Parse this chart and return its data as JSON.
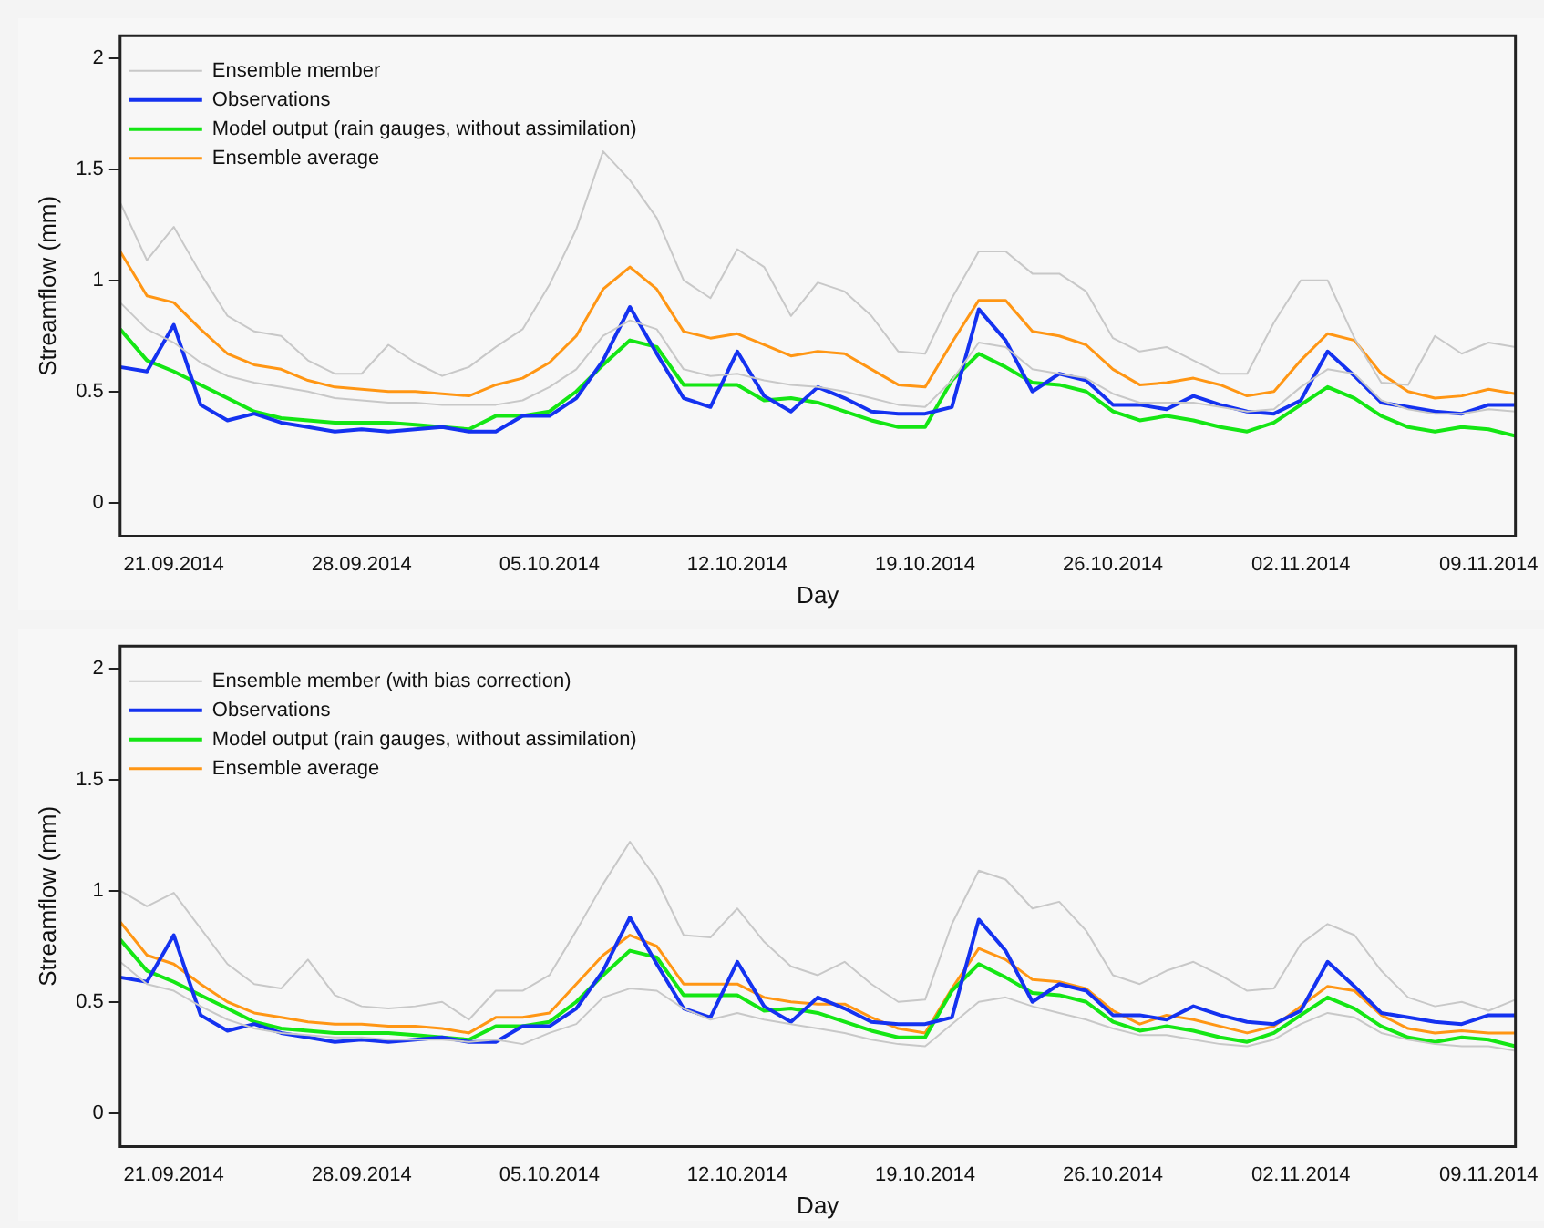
{
  "chart_data": [
    {
      "type": "line",
      "xlabel": "Day",
      "ylabel": "Streamflow (mm)",
      "legend": "top left",
      "grid": false,
      "marker": "none",
      "line_style": "solid",
      "x": [
        "2014-09-19",
        "2014-09-20",
        "2014-09-21",
        "2014-09-22",
        "2014-09-23",
        "2014-09-24",
        "2014-09-25",
        "2014-09-26",
        "2014-09-27",
        "2014-09-28",
        "2014-09-29",
        "2014-09-30",
        "2014-10-01",
        "2014-10-02",
        "2014-10-03",
        "2014-10-04",
        "2014-10-05",
        "2014-10-06",
        "2014-10-07",
        "2014-10-08",
        "2014-10-09",
        "2014-10-10",
        "2014-10-11",
        "2014-10-12",
        "2014-10-13",
        "2014-10-14",
        "2014-10-15",
        "2014-10-16",
        "2014-10-17",
        "2014-10-18",
        "2014-10-19",
        "2014-10-20",
        "2014-10-21",
        "2014-10-22",
        "2014-10-23",
        "2014-10-24",
        "2014-10-25",
        "2014-10-26",
        "2014-10-27",
        "2014-10-28",
        "2014-10-29",
        "2014-10-30",
        "2014-10-31",
        "2014-11-01",
        "2014-11-02",
        "2014-11-03",
        "2014-11-04",
        "2014-11-05",
        "2014-11-06",
        "2014-11-07",
        "2014-11-08",
        "2014-11-09",
        "2014-11-10"
      ],
      "xlim": [
        "2014-09-19",
        "2014-11-10"
      ],
      "xticks": [
        {
          "value": "2014-09-21",
          "label": "21.09.2014"
        },
        {
          "value": "2014-09-28",
          "label": "28.09.2014"
        },
        {
          "value": "2014-10-05",
          "label": "05.10.2014"
        },
        {
          "value": "2014-10-12",
          "label": "12.10.2014"
        },
        {
          "value": "2014-10-19",
          "label": "19.10.2014"
        },
        {
          "value": "2014-10-26",
          "label": "26.10.2014"
        },
        {
          "value": "2014-11-02",
          "label": "02.11.2014"
        },
        {
          "value": "2014-11-09",
          "label": "09.11.2014"
        }
      ],
      "ylim": [
        -0.15,
        2.1
      ],
      "yticks": [
        0,
        0.5,
        1,
        1.5,
        2
      ],
      "series": [
        {
          "name": "Ensemble member",
          "color": "#c8c8c8",
          "values": [
            1.35,
            1.09,
            1.24,
            1.03,
            0.84,
            0.77,
            0.75,
            0.64,
            0.58,
            0.58,
            0.71,
            0.63,
            0.57,
            0.61,
            0.7,
            0.78,
            0.98,
            1.23,
            1.58,
            1.45,
            1.28,
            1.0,
            0.92,
            1.14,
            1.06,
            0.84,
            0.99,
            0.95,
            0.84,
            0.68,
            0.67,
            0.92,
            1.13,
            1.13,
            1.03,
            1.03,
            0.95,
            0.74,
            0.68,
            0.7,
            0.64,
            0.58,
            0.58,
            0.81,
            1.0,
            1.0,
            0.74,
            0.54,
            0.53,
            0.75,
            0.67,
            0.72,
            0.7
          ]
        },
        {
          "color": "#c8c8c8",
          "values": [
            0.9,
            0.78,
            0.72,
            0.63,
            0.57,
            0.54,
            0.52,
            0.5,
            0.47,
            0.46,
            0.45,
            0.45,
            0.44,
            0.44,
            0.44,
            0.46,
            0.52,
            0.6,
            0.75,
            0.82,
            0.78,
            0.6,
            0.57,
            0.58,
            0.55,
            0.53,
            0.52,
            0.5,
            0.47,
            0.44,
            0.43,
            0.55,
            0.72,
            0.7,
            0.6,
            0.58,
            0.56,
            0.49,
            0.45,
            0.45,
            0.45,
            0.43,
            0.41,
            0.42,
            0.52,
            0.6,
            0.58,
            0.46,
            0.42,
            0.4,
            0.4,
            0.42,
            0.41
          ]
        },
        {
          "name": "Observations",
          "color": "#1432f0",
          "values": [
            0.61,
            0.59,
            0.8,
            0.44,
            0.37,
            0.4,
            0.36,
            0.34,
            0.32,
            0.33,
            0.32,
            0.33,
            0.34,
            0.32,
            0.32,
            0.39,
            0.39,
            0.47,
            0.64,
            0.88,
            0.67,
            0.47,
            0.43,
            0.68,
            0.48,
            0.41,
            0.52,
            0.47,
            0.41,
            0.4,
            0.4,
            0.43,
            0.87,
            0.73,
            0.5,
            0.58,
            0.55,
            0.44,
            0.44,
            0.42,
            0.48,
            0.44,
            0.41,
            0.4,
            0.46,
            0.68,
            0.57,
            0.45,
            0.43,
            0.41,
            0.4,
            0.44,
            0.44
          ]
        },
        {
          "name": "Model output (rain gauges, without assimilation)",
          "color": "#14e614",
          "values": [
            0.78,
            0.64,
            0.59,
            0.53,
            0.47,
            0.41,
            0.38,
            0.37,
            0.36,
            0.36,
            0.36,
            0.35,
            0.34,
            0.33,
            0.39,
            0.39,
            0.41,
            0.5,
            0.62,
            0.73,
            0.7,
            0.53,
            0.53,
            0.53,
            0.46,
            0.47,
            0.45,
            0.41,
            0.37,
            0.34,
            0.34,
            0.55,
            0.67,
            0.61,
            0.54,
            0.53,
            0.5,
            0.41,
            0.37,
            0.39,
            0.37,
            0.34,
            0.32,
            0.36,
            0.44,
            0.52,
            0.47,
            0.39,
            0.34,
            0.32,
            0.34,
            0.33,
            0.3
          ]
        },
        {
          "name": "Ensemble average",
          "color": "#ff9614",
          "values": [
            1.13,
            0.93,
            0.9,
            0.78,
            0.67,
            0.62,
            0.6,
            0.55,
            0.52,
            0.51,
            0.5,
            0.5,
            0.49,
            0.48,
            0.53,
            0.56,
            0.63,
            0.75,
            0.96,
            1.06,
            0.96,
            0.77,
            0.74,
            0.76,
            0.71,
            0.66,
            0.68,
            0.67,
            0.6,
            0.53,
            0.52,
            0.72,
            0.91,
            0.91,
            0.77,
            0.75,
            0.71,
            0.6,
            0.53,
            0.54,
            0.56,
            0.53,
            0.48,
            0.5,
            0.64,
            0.76,
            0.73,
            0.58,
            0.5,
            0.47,
            0.48,
            0.51,
            0.49
          ]
        }
      ]
    },
    {
      "type": "line",
      "xlabel": "Day",
      "ylabel": "Streamflow (mm)",
      "legend": "top left",
      "grid": false,
      "marker": "none",
      "line_style": "solid",
      "x": [
        "2014-09-19",
        "2014-09-20",
        "2014-09-21",
        "2014-09-22",
        "2014-09-23",
        "2014-09-24",
        "2014-09-25",
        "2014-09-26",
        "2014-09-27",
        "2014-09-28",
        "2014-09-29",
        "2014-09-30",
        "2014-10-01",
        "2014-10-02",
        "2014-10-03",
        "2014-10-04",
        "2014-10-05",
        "2014-10-06",
        "2014-10-07",
        "2014-10-08",
        "2014-10-09",
        "2014-10-10",
        "2014-10-11",
        "2014-10-12",
        "2014-10-13",
        "2014-10-14",
        "2014-10-15",
        "2014-10-16",
        "2014-10-17",
        "2014-10-18",
        "2014-10-19",
        "2014-10-20",
        "2014-10-21",
        "2014-10-22",
        "2014-10-23",
        "2014-10-24",
        "2014-10-25",
        "2014-10-26",
        "2014-10-27",
        "2014-10-28",
        "2014-10-29",
        "2014-10-30",
        "2014-10-31",
        "2014-11-01",
        "2014-11-02",
        "2014-11-03",
        "2014-11-04",
        "2014-11-05",
        "2014-11-06",
        "2014-11-07",
        "2014-11-08",
        "2014-11-09",
        "2014-11-10"
      ],
      "xlim": [
        "2014-09-19",
        "2014-11-10"
      ],
      "xticks": [
        {
          "value": "2014-09-21",
          "label": "21.09.2014"
        },
        {
          "value": "2014-09-28",
          "label": "28.09.2014"
        },
        {
          "value": "2014-10-05",
          "label": "05.10.2014"
        },
        {
          "value": "2014-10-12",
          "label": "12.10.2014"
        },
        {
          "value": "2014-10-19",
          "label": "19.10.2014"
        },
        {
          "value": "2014-10-26",
          "label": "26.10.2014"
        },
        {
          "value": "2014-11-02",
          "label": "02.11.2014"
        },
        {
          "value": "2014-11-09",
          "label": "09.11.2014"
        }
      ],
      "ylim": [
        -0.15,
        2.1
      ],
      "yticks": [
        0,
        0.5,
        1,
        1.5,
        2
      ],
      "series": [
        {
          "name": "Ensemble member (with bias correction)",
          "color": "#c8c8c8",
          "values": [
            1.0,
            0.93,
            0.99,
            0.83,
            0.67,
            0.58,
            0.56,
            0.69,
            0.53,
            0.48,
            0.47,
            0.48,
            0.5,
            0.42,
            0.55,
            0.55,
            0.62,
            0.82,
            1.03,
            1.22,
            1.05,
            0.8,
            0.79,
            0.92,
            0.77,
            0.66,
            0.62,
            0.68,
            0.58,
            0.5,
            0.51,
            0.85,
            1.09,
            1.05,
            0.92,
            0.95,
            0.82,
            0.62,
            0.58,
            0.64,
            0.68,
            0.62,
            0.55,
            0.56,
            0.76,
            0.85,
            0.8,
            0.64,
            0.52,
            0.48,
            0.5,
            0.46,
            0.51
          ]
        },
        {
          "color": "#c8c8c8",
          "values": [
            0.68,
            0.58,
            0.55,
            0.48,
            0.42,
            0.38,
            0.36,
            0.35,
            0.34,
            0.34,
            0.33,
            0.33,
            0.33,
            0.32,
            0.33,
            0.31,
            0.36,
            0.4,
            0.52,
            0.56,
            0.55,
            0.47,
            0.42,
            0.45,
            0.42,
            0.4,
            0.38,
            0.36,
            0.33,
            0.31,
            0.3,
            0.4,
            0.5,
            0.52,
            0.48,
            0.45,
            0.42,
            0.38,
            0.35,
            0.35,
            0.33,
            0.31,
            0.3,
            0.33,
            0.4,
            0.45,
            0.43,
            0.36,
            0.33,
            0.31,
            0.3,
            0.3,
            0.28
          ]
        },
        {
          "name": "Observations",
          "color": "#1432f0",
          "values": [
            0.61,
            0.59,
            0.8,
            0.44,
            0.37,
            0.4,
            0.36,
            0.34,
            0.32,
            0.33,
            0.32,
            0.33,
            0.34,
            0.32,
            0.32,
            0.39,
            0.39,
            0.47,
            0.64,
            0.88,
            0.67,
            0.47,
            0.43,
            0.68,
            0.48,
            0.41,
            0.52,
            0.47,
            0.41,
            0.4,
            0.4,
            0.43,
            0.87,
            0.73,
            0.5,
            0.58,
            0.55,
            0.44,
            0.44,
            0.42,
            0.48,
            0.44,
            0.41,
            0.4,
            0.46,
            0.68,
            0.57,
            0.45,
            0.43,
            0.41,
            0.4,
            0.44,
            0.44
          ]
        },
        {
          "name": "Model output (rain gauges, without assimilation)",
          "color": "#14e614",
          "values": [
            0.78,
            0.64,
            0.59,
            0.53,
            0.47,
            0.41,
            0.38,
            0.37,
            0.36,
            0.36,
            0.36,
            0.35,
            0.34,
            0.33,
            0.39,
            0.39,
            0.41,
            0.5,
            0.62,
            0.73,
            0.7,
            0.53,
            0.53,
            0.53,
            0.46,
            0.47,
            0.45,
            0.41,
            0.37,
            0.34,
            0.34,
            0.55,
            0.67,
            0.61,
            0.54,
            0.53,
            0.5,
            0.41,
            0.37,
            0.39,
            0.37,
            0.34,
            0.32,
            0.36,
            0.44,
            0.52,
            0.47,
            0.39,
            0.34,
            0.32,
            0.34,
            0.33,
            0.3
          ]
        },
        {
          "name": "Ensemble average",
          "color": "#ff9614",
          "values": [
            0.86,
            0.71,
            0.67,
            0.58,
            0.5,
            0.45,
            0.43,
            0.41,
            0.4,
            0.4,
            0.39,
            0.39,
            0.38,
            0.36,
            0.43,
            0.43,
            0.45,
            0.58,
            0.71,
            0.8,
            0.75,
            0.58,
            0.58,
            0.58,
            0.52,
            0.5,
            0.49,
            0.49,
            0.43,
            0.38,
            0.36,
            0.56,
            0.74,
            0.69,
            0.6,
            0.59,
            0.56,
            0.46,
            0.4,
            0.44,
            0.42,
            0.39,
            0.36,
            0.39,
            0.48,
            0.57,
            0.55,
            0.44,
            0.38,
            0.36,
            0.37,
            0.36,
            0.36
          ]
        }
      ]
    }
  ]
}
